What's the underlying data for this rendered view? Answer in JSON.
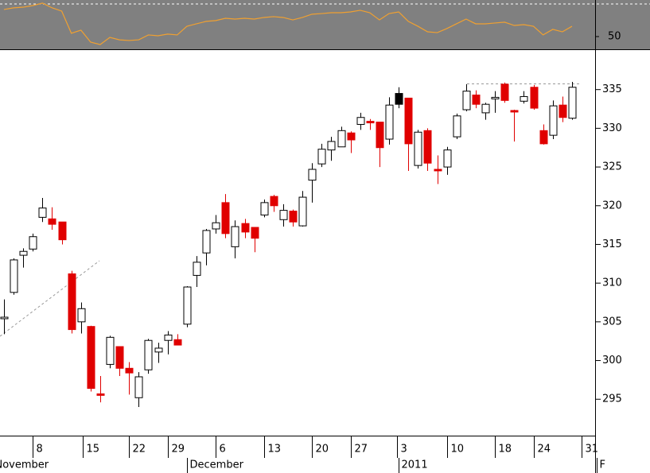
{
  "chart_data": [
    {
      "type": "line",
      "color": "#f0a030",
      "background": "#808080",
      "ylim": [
        42.2,
        72.4
      ],
      "xlim": [
        -0.41,
        61.4
      ],
      "yticks": [
        50
      ],
      "values": [
        66.6,
        67.6,
        68.0,
        69.0,
        70.5,
        67.6,
        65.6,
        52.0,
        53.9,
        46.6,
        45.1,
        49.5,
        48.0,
        47.6,
        48.0,
        51.0,
        50.5,
        51.5,
        51.0,
        56.3,
        57.8,
        59.3,
        59.8,
        61.2,
        60.7,
        61.2,
        60.7,
        61.7,
        62.2,
        61.7,
        60.2,
        61.7,
        63.7,
        64.1,
        64.6,
        64.6,
        65.1,
        66.1,
        64.6,
        60.2,
        64.1,
        65.1,
        59.3,
        56.3,
        52.9,
        52.4,
        54.9,
        57.8,
        60.7,
        57.8,
        57.8,
        58.3,
        58.8,
        56.8,
        57.3,
        56.3,
        51.0,
        54.4,
        52.9,
        56.3
      ]
    },
    {
      "type": "candlestick",
      "ylim": [
        290.3,
        340.0
      ],
      "xlim": [
        -0.41,
        61.4
      ],
      "yticks": [
        295,
        300,
        305,
        310,
        315,
        320,
        325,
        330,
        335
      ],
      "xticks": [
        {
          "value": 3,
          "label": "8"
        },
        {
          "value": 8.2,
          "label": "15"
        },
        {
          "value": 13,
          "label": "22"
        },
        {
          "value": 17,
          "label": "29"
        },
        {
          "value": 22,
          "label": "6"
        },
        {
          "value": 27,
          "label": "13"
        },
        {
          "value": 32,
          "label": "20"
        },
        {
          "value": 36,
          "label": "27"
        },
        {
          "value": 40.8,
          "label": "3"
        },
        {
          "value": 46,
          "label": "10"
        },
        {
          "value": 51,
          "label": "18"
        },
        {
          "value": 55,
          "label": "24"
        },
        {
          "value": 60,
          "label": "31"
        }
      ],
      "month_ticks": [
        {
          "value": -1.2,
          "label": "November"
        },
        {
          "value": 19,
          "label": "December"
        },
        {
          "value": 41,
          "label": "2011"
        },
        {
          "value": 61.6,
          "label": "F"
        }
      ],
      "open": [
        305.4,
        308.8,
        313.6,
        314.4,
        318.5,
        318.3,
        317.9,
        311.2,
        305.0,
        304.4,
        295.7,
        299.5,
        301.8,
        299.0,
        295.2,
        298.8,
        301.1,
        302.6,
        302.7,
        304.7,
        311.0,
        313.9,
        317.0,
        320.4,
        314.7,
        317.7,
        317.2,
        318.8,
        321.2,
        318.2,
        319.3,
        317.4,
        323.3,
        325.4,
        327.2,
        327.6,
        329.4,
        330.5,
        330.9,
        330.8,
        328.6,
        333.1,
        333.9,
        325.2,
        329.7,
        324.7,
        325.0,
        328.9,
        332.4,
        334.3,
        332.0,
        333.8,
        335.7,
        332.3,
        333.5,
        335.3,
        329.7,
        329.1,
        333.0,
        331.3
      ],
      "high": [
        307.9,
        313.2,
        314.5,
        316.4,
        321.0,
        319.8,
        317.9,
        311.6,
        307.5,
        304.5,
        298.0,
        303.2,
        301.8,
        299.8,
        298.5,
        302.8,
        302.3,
        303.8,
        303.4,
        309.6,
        313.5,
        317.0,
        318.8,
        321.5,
        318.1,
        318.3,
        317.2,
        320.8,
        321.4,
        320.2,
        319.5,
        321.9,
        325.5,
        328.0,
        328.9,
        330.2,
        329.6,
        332.0,
        331.2,
        330.8,
        334.0,
        335.3,
        333.9,
        329.8,
        330.0,
        326.5,
        327.6,
        331.9,
        335.7,
        334.9,
        333.3,
        334.8,
        335.9,
        332.4,
        334.8,
        335.6,
        330.5,
        333.6,
        334.1,
        336.0
      ],
      "low": [
        303.4,
        308.5,
        312.0,
        314.1,
        317.9,
        316.9,
        315.0,
        303.5,
        303.5,
        296.0,
        294.6,
        299.0,
        298.0,
        295.6,
        294.0,
        298.3,
        299.7,
        300.8,
        302.0,
        304.3,
        309.5,
        312.3,
        316.4,
        315.8,
        313.2,
        315.8,
        314.0,
        318.5,
        319.2,
        317.3,
        317.3,
        317.3,
        320.4,
        325.0,
        325.8,
        327.6,
        326.8,
        329.8,
        329.8,
        325.0,
        327.9,
        332.6,
        324.5,
        324.8,
        324.5,
        322.8,
        324.0,
        328.6,
        332.2,
        332.6,
        331.1,
        332.0,
        333.3,
        328.3,
        333.2,
        332.4,
        327.9,
        328.6,
        330.8,
        331.1
      ],
      "close": [
        305.6,
        313.0,
        314.1,
        316.0,
        319.7,
        317.6,
        315.6,
        304.0,
        306.7,
        296.4,
        295.5,
        303.0,
        299.0,
        298.4,
        297.9,
        302.6,
        301.6,
        303.3,
        302.0,
        309.5,
        312.7,
        316.8,
        317.8,
        316.4,
        317.3,
        316.6,
        315.8,
        320.4,
        320.0,
        319.4,
        317.9,
        321.1,
        324.7,
        327.3,
        328.3,
        329.7,
        328.5,
        331.4,
        330.7,
        327.5,
        333.0,
        334.5,
        328.0,
        329.5,
        325.5,
        324.5,
        327.2,
        331.6,
        334.8,
        333.1,
        333.1,
        334.0,
        333.6,
        332.1,
        334.1,
        332.6,
        328.0,
        332.9,
        331.4,
        335.3
      ],
      "colors": [
        "#ffffff",
        "#ffffff",
        "#ffffff",
        "#ffffff",
        "#ffffff",
        "#e00000",
        "#e00000",
        "#e00000",
        "#ffffff",
        "#e00000",
        "#e00000",
        "#ffffff",
        "#e00000",
        "#e00000",
        "#ffffff",
        "#ffffff",
        "#ffffff",
        "#ffffff",
        "#e00000",
        "#ffffff",
        "#ffffff",
        "#ffffff",
        "#ffffff",
        "#e00000",
        "#ffffff",
        "#e00000",
        "#e00000",
        "#ffffff",
        "#e00000",
        "#ffffff",
        "#e00000",
        "#ffffff",
        "#ffffff",
        "#ffffff",
        "#ffffff",
        "#ffffff",
        "#e00000",
        "#ffffff",
        "#e00000",
        "#e00000",
        "#ffffff",
        "#000000",
        "#e00000",
        "#ffffff",
        "#e00000",
        "#e00000",
        "#ffffff",
        "#ffffff",
        "#ffffff",
        "#e00000",
        "#ffffff",
        "#ffffff",
        "#e00000",
        "#e00000",
        "#ffffff",
        "#e00000",
        "#e00000",
        "#ffffff",
        "#e00000",
        "#ffffff"
      ]
    }
  ]
}
